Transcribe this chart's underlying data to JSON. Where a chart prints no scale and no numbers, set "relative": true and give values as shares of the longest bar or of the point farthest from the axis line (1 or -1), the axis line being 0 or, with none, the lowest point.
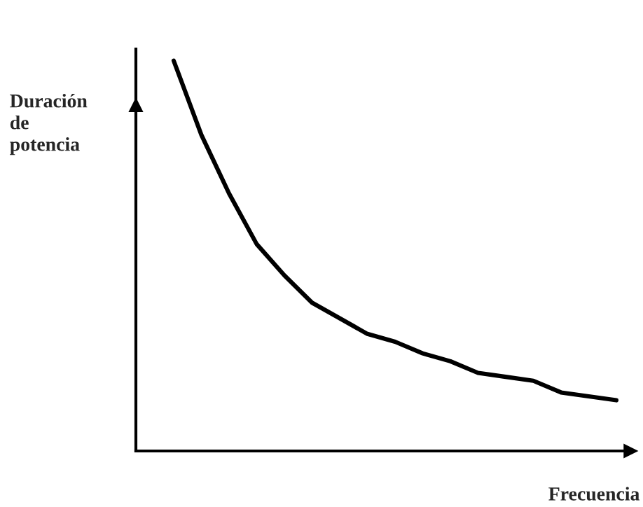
{
  "chart_data": {
    "type": "line",
    "relative": true,
    "xlabel": "Frecuencia",
    "ylabel": "Duración\nde\npotencia",
    "categories": [
      null,
      null,
      null,
      null,
      null,
      null,
      null,
      null,
      null,
      null,
      null,
      null,
      null,
      null,
      null,
      null,
      null
    ],
    "series": [
      {
        "color": "#000000",
        "values": [
          1.0,
          0.81,
          0.66,
          0.53,
          0.45,
          0.38,
          0.34,
          0.3,
          0.28,
          0.25,
          0.23,
          0.2,
          0.19,
          0.18,
          0.15,
          0.14,
          0.13
        ]
      }
    ]
  }
}
